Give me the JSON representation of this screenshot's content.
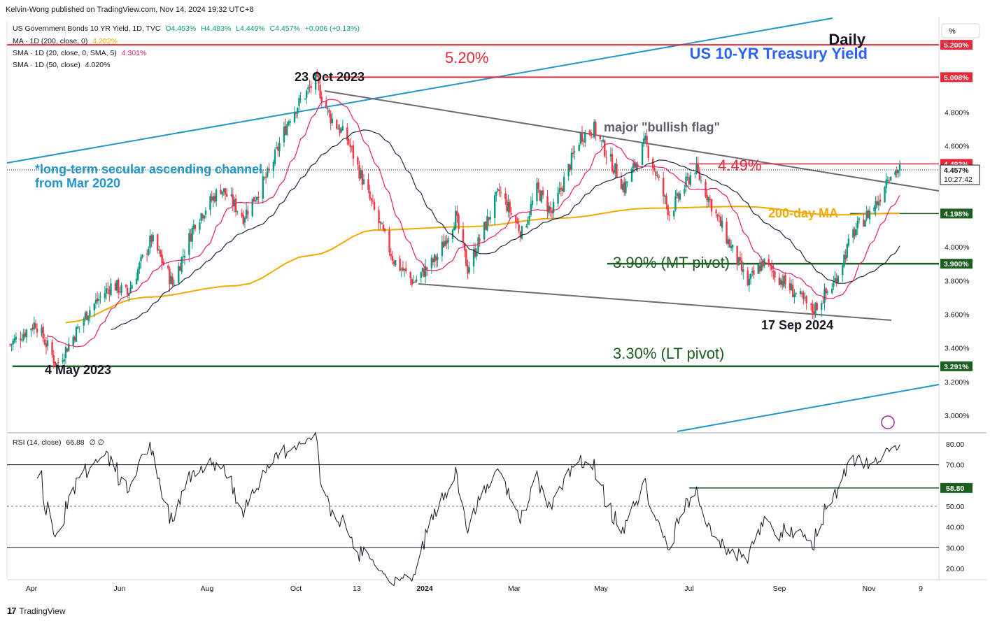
{
  "header": {
    "published": "Kelvin-Wong published on TradingView.com, Nov 14, 2024 19:32 UTC+8"
  },
  "legend": {
    "title": "US Government Bonds 10 YR Yield, 1D, TVC",
    "ohlc": {
      "o": "O4.453%",
      "h": "H4.483%",
      "l": "L4.449%",
      "c": "C4.457%",
      "chg": "+0.006 (+0.13%)"
    },
    "ma200": {
      "label": "MA · 1D (200, close, 0)",
      "value": "4.202%",
      "color": "#f2a900"
    },
    "sma20": {
      "label": "SMA · 1D (20, close, 0, SMA, 5)",
      "value": "4.301%",
      "color": "#e91e63"
    },
    "sma50": {
      "label": "SMA · 1D (50, close)",
      "value": "4.020%",
      "color": "#1a2a4a"
    },
    "rsi": {
      "label": "RSI (14, close)",
      "value": "66.88",
      "extra": "∅ ∅"
    }
  },
  "annotations": {
    "daily": "Daily",
    "chart_name": "US 10-YR Treasury Yield",
    "r520": "5.20%",
    "oct2023": "23 Oct 2023",
    "bullflag": "major \"bullish flag\"",
    "channel1": "*long-term secular ascending channel",
    "channel2": "from Mar 2020",
    "r449": "4.49%",
    "ma200": "200-day MA",
    "mtpivot": "3.90% (MT pivot)",
    "sep2024": "17 Sep 2024",
    "ltpivot": "3.30% (LT pivot)",
    "may2023": "4 May 2023"
  },
  "price_axis": {
    "unit_label": "%",
    "ticks": [
      "4.800%",
      "4.600%",
      "4.000%",
      "3.800%",
      "3.600%",
      "3.400%",
      "3.200%",
      "3.000%"
    ],
    "tags": {
      "r520": "5.200%",
      "r500": "5.008%",
      "r449": "4.493%",
      "last": "4.457%",
      "timer": "10:27:42",
      "ma": "4.198%",
      "r390": "3.900%",
      "r329": "3.291%"
    }
  },
  "rsi_axis": {
    "ticks": [
      "80.00",
      "70.00",
      "60.00",
      "50.00",
      "40.00",
      "30.00",
      "20.00"
    ],
    "tag": "58.80"
  },
  "time_axis": [
    "Apr",
    "Jun",
    "Aug",
    "Oct",
    "13",
    "2024",
    "Mar",
    "May",
    "Jul",
    "Sep",
    "Nov",
    "9"
  ],
  "colors": {
    "up": "#089981",
    "down": "#f23645",
    "red_line": "#e8283a",
    "green_line": "#1b5e20",
    "channel": "#2196c8",
    "flag": "#6b6b78",
    "ma200": "#f2a900",
    "sma20": "#e91e63",
    "sma50": "#1a2a4a",
    "rsi": "#131722"
  },
  "chart_data": {
    "type": "line",
    "title": "US 10-YR Treasury Yield",
    "series": [
      {
        "name": "US Government Bonds 10 YR Yield",
        "points": [
          [
            "2023-04-03",
            3.42
          ],
          [
            "2023-04-20",
            3.55
          ],
          [
            "2023-05-04",
            3.3
          ],
          [
            "2023-05-25",
            3.62
          ],
          [
            "2023-06-10",
            3.78
          ],
          [
            "2023-06-20",
            3.72
          ],
          [
            "2023-07-06",
            4.05
          ],
          [
            "2023-07-20",
            3.78
          ],
          [
            "2023-08-04",
            4.15
          ],
          [
            "2023-08-21",
            4.35
          ],
          [
            "2023-09-05",
            4.18
          ],
          [
            "2023-09-22",
            4.44
          ],
          [
            "2023-10-06",
            4.78
          ],
          [
            "2023-10-23",
            4.99
          ],
          [
            "2023-11-01",
            4.78
          ],
          [
            "2023-11-13",
            4.64
          ],
          [
            "2023-12-01",
            4.21
          ],
          [
            "2023-12-14",
            3.92
          ],
          [
            "2023-12-27",
            3.79
          ],
          [
            "2024-01-12",
            3.94
          ],
          [
            "2024-01-24",
            4.18
          ],
          [
            "2024-02-01",
            3.87
          ],
          [
            "2024-02-22",
            4.33
          ],
          [
            "2024-03-08",
            4.08
          ],
          [
            "2024-03-18",
            4.34
          ],
          [
            "2024-03-28",
            4.2
          ],
          [
            "2024-04-16",
            4.66
          ],
          [
            "2024-04-25",
            4.7
          ],
          [
            "2024-05-15",
            4.35
          ],
          [
            "2024-05-29",
            4.62
          ],
          [
            "2024-06-14",
            4.2
          ],
          [
            "2024-07-01",
            4.47
          ],
          [
            "2024-07-17",
            4.15
          ],
          [
            "2024-08-05",
            3.78
          ],
          [
            "2024-08-15",
            3.91
          ],
          [
            "2024-09-05",
            3.73
          ],
          [
            "2024-09-17",
            3.62
          ],
          [
            "2024-10-01",
            3.78
          ],
          [
            "2024-10-14",
            4.08
          ],
          [
            "2024-10-31",
            4.28
          ],
          [
            "2024-11-06",
            4.43
          ],
          [
            "2024-11-14",
            4.46
          ]
        ]
      },
      {
        "name": "MA · 1D (200, close, 0)",
        "points": [
          [
            "2023-05-10",
            3.55
          ],
          [
            "2023-07-01",
            3.7
          ],
          [
            "2023-09-01",
            3.77
          ],
          [
            "2023-10-20",
            3.95
          ],
          [
            "2023-12-01",
            4.1
          ],
          [
            "2024-02-01",
            4.12
          ],
          [
            "2024-04-01",
            4.17
          ],
          [
            "2024-06-01",
            4.23
          ],
          [
            "2024-08-01",
            4.24
          ],
          [
            "2024-10-01",
            4.19
          ],
          [
            "2024-11-14",
            4.2
          ]
        ]
      },
      {
        "name": "SMA · 1D (20, close, 0, SMA, 5)",
        "points": [
          [
            "2024-08-25",
            3.82
          ],
          [
            "2024-09-25",
            3.7
          ],
          [
            "2024-10-15",
            3.9
          ],
          [
            "2024-11-05",
            4.2
          ],
          [
            "2024-11-14",
            4.3
          ]
        ]
      },
      {
        "name": "SMA · 1D (50, close)",
        "points": [
          [
            "2024-09-01",
            3.92
          ],
          [
            "2024-10-01",
            3.78
          ],
          [
            "2024-11-14",
            4.02
          ]
        ]
      }
    ],
    "levels": [
      5.2,
      5.008,
      4.493,
      4.198,
      3.9,
      3.291
    ],
    "ylim": [
      2.9,
      5.35
    ],
    "rsi": {
      "name": "RSI (14, close)",
      "last": 66.88,
      "levels": [
        70,
        50,
        30
      ],
      "support": 58.8,
      "ylim": [
        15,
        85
      ]
    },
    "x_ticks": [
      "Apr",
      "Jun",
      "Aug",
      "Oct",
      "13",
      "2024",
      "Mar",
      "May",
      "Jul",
      "Sep",
      "Nov",
      "9"
    ]
  }
}
